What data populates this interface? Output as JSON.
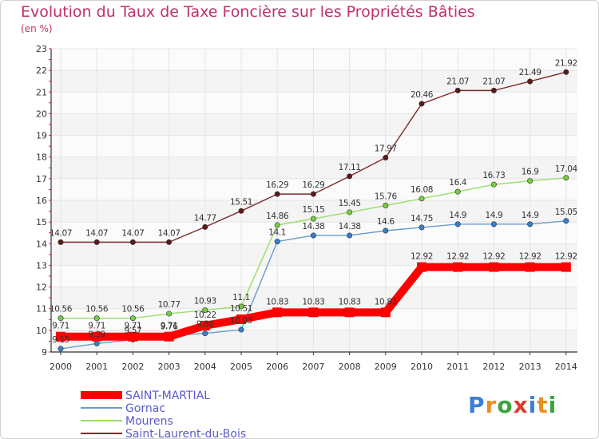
{
  "header": {
    "title": "Evolution du Taux de Taxe Foncière sur les Propriétés Bâties",
    "subtitle": "(en %)"
  },
  "logo": {
    "letters": [
      "P",
      "r",
      "o",
      "x",
      "i",
      "t",
      "i"
    ],
    "colors": [
      "#3a7fd5",
      "#e8901e",
      "#3aa53a",
      "#d8402a",
      "#3a7fd5",
      "#e8901e",
      "#3aa53a"
    ]
  },
  "chart_data": {
    "type": "line",
    "title": "Evolution du Taux de Taxe Foncière sur les Propriétés Bâties",
    "ylabel": "(en %)",
    "xlabel": "",
    "ylim": [
      9,
      23
    ],
    "yticks": [
      9,
      10,
      11,
      12,
      13,
      14,
      15,
      16,
      17,
      18,
      19,
      20,
      21,
      22,
      23
    ],
    "categories": [
      "2000",
      "2001",
      "2002",
      "2003",
      "2004",
      "2005",
      "2006",
      "2007",
      "2008",
      "2009",
      "2010",
      "2011",
      "2012",
      "2013",
      "2014"
    ],
    "grid": true,
    "legend_position": "bottom-left",
    "series": [
      {
        "name": "Saint-Laurent-du-Bois",
        "color": "#7b2a2a",
        "point": "#5a1a1a",
        "values": [
          14.07,
          14.07,
          14.07,
          14.07,
          14.77,
          15.51,
          16.29,
          16.29,
          17.11,
          17.97,
          20.46,
          21.07,
          21.07,
          21.49,
          21.92
        ],
        "labels": [
          "14.07",
          "14.07",
          "14.07",
          "14.07",
          "14.77",
          "15.51",
          "16.29",
          "16.29",
          "17.11",
          "17.97",
          "20.46",
          "21.07",
          "21.07",
          "21.49",
          "21.92"
        ]
      },
      {
        "name": "Mourens",
        "color": "#99dd66",
        "point": "#77cc44",
        "values": [
          10.56,
          10.56,
          10.56,
          10.77,
          10.93,
          11.1,
          14.86,
          15.15,
          15.45,
          15.76,
          16.08,
          16.4,
          16.73,
          16.9,
          17.04
        ],
        "labels": [
          "10.56",
          "10.56",
          "10.56",
          "10.77",
          "10.93",
          "11.1",
          "14.86",
          "15.15",
          "15.45",
          "15.76",
          "16.08",
          "16.4",
          "16.73",
          "16.9",
          "17.04"
        ]
      },
      {
        "name": "Gornac",
        "color": "#6a9ccc",
        "point": "#3a7fc8",
        "values": [
          9.15,
          9.39,
          9.57,
          9.76,
          9.86,
          10.03,
          14.1,
          14.38,
          14.38,
          14.6,
          14.75,
          14.9,
          14.9,
          14.9,
          15.05
        ],
        "labels": [
          "9.15",
          "9.39",
          "9.57",
          "9.76",
          "9.86",
          "10.03",
          "14.1",
          "14.38",
          "14.38",
          "14.6",
          "14.75",
          "14.9",
          "14.9",
          "14.9",
          "15.05"
        ]
      },
      {
        "name": "SAINT-MARTIAL",
        "color": "#ff0000",
        "point": "#ff0000",
        "values": [
          9.71,
          9.71,
          9.71,
          9.71,
          10.22,
          10.51,
          10.83,
          10.83,
          10.83,
          10.83,
          12.92,
          12.92,
          12.92,
          12.92,
          12.92
        ],
        "labels": [
          "9.71",
          "9.71",
          "9.71",
          "9.71",
          "10.22",
          "10.51",
          "10.83",
          "10.83",
          "10.83",
          "10.83",
          "12.92",
          "12.92",
          "12.92",
          "12.92",
          "12.92"
        ]
      }
    ],
    "legend": [
      "SAINT-MARTIAL",
      "Gornac",
      "Mourens",
      "Saint-Laurent-du-Bois"
    ]
  }
}
